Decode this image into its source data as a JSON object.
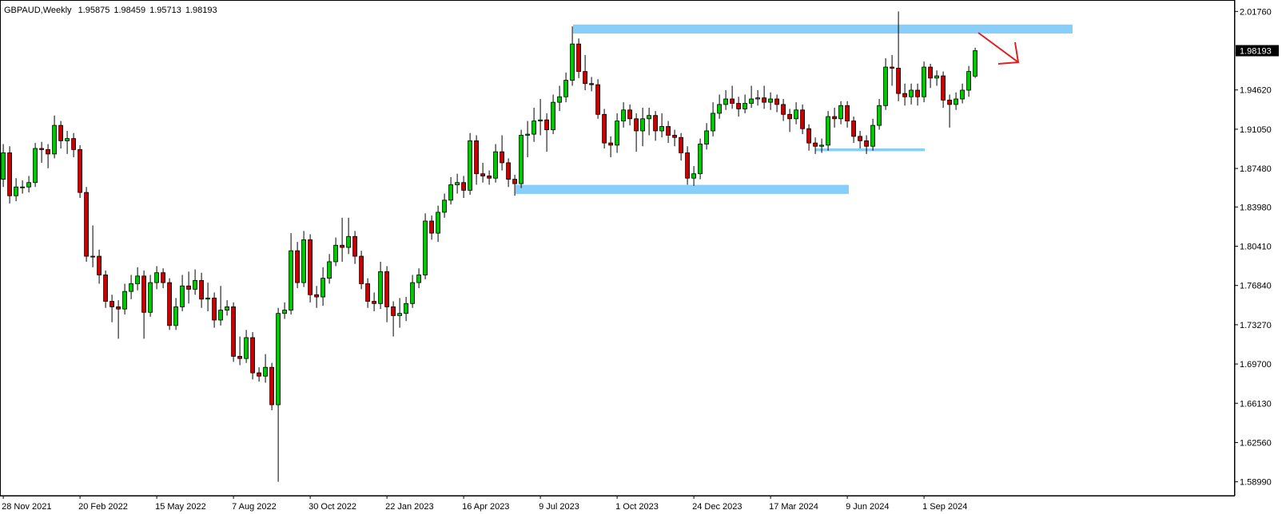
{
  "chart_data": {
    "type": "candlestick",
    "title": "GBPAUD,Weekly",
    "bull_color": "#00c800",
    "bear_color": "#c80000",
    "zone_color": "#87cefa",
    "categories": [
      "28 Nov 2021",
      null,
      null,
      null,
      null,
      null,
      null,
      null,
      null,
      null,
      null,
      null,
      "20 Feb 2022",
      null,
      null,
      null,
      null,
      null,
      null,
      null,
      null,
      null,
      null,
      null,
      "15 May 2022",
      null,
      null,
      null,
      null,
      null,
      null,
      null,
      null,
      null,
      null,
      null,
      "7 Aug 2022",
      null,
      null,
      null,
      null,
      null,
      null,
      null,
      null,
      null,
      null,
      null,
      "30 Oct 2022",
      null,
      null,
      null,
      null,
      null,
      null,
      null,
      null,
      null,
      null,
      null,
      "22 Jan 2023",
      null,
      null,
      null,
      null,
      null,
      null,
      null,
      null,
      null,
      null,
      null,
      "16 Apr 2023",
      null,
      null,
      null,
      null,
      null,
      null,
      null,
      null,
      null,
      null,
      null,
      "9 Jul 2023",
      null,
      null,
      null,
      null,
      null,
      null,
      null,
      null,
      null,
      null,
      null,
      "1 Oct 2023",
      null,
      null,
      null,
      null,
      null,
      null,
      null,
      null,
      null,
      null,
      null,
      "24 Dec 2023",
      null,
      null,
      null,
      null,
      null,
      null,
      null,
      null,
      null,
      null,
      null,
      "17 Mar 2024",
      null,
      null,
      null,
      null,
      null,
      null,
      null,
      null,
      null,
      null,
      null,
      "9 Jun 2024",
      null,
      null,
      null,
      null,
      null,
      null,
      null,
      null,
      null,
      null,
      null,
      "1 Sep 2024",
      null,
      null,
      null,
      null,
      null,
      null,
      null,
      null
    ],
    "open": [
      1.865,
      1.889,
      1.85,
      1.858,
      1.858,
      1.862,
      1.893,
      1.892,
      1.888,
      1.914,
      1.9,
      1.902,
      1.892,
      1.853,
      1.795,
      1.795,
      1.778,
      1.754,
      1.749,
      1.747,
      1.763,
      1.77,
      1.777,
      1.744,
      1.771,
      1.78,
      1.771,
      1.732,
      1.749,
      1.768,
      1.765,
      1.773,
      1.756,
      1.757,
      1.737,
      1.746,
      1.749,
      1.704,
      1.702,
      1.721,
      1.689,
      1.686,
      1.694,
      1.66,
      1.743,
      1.746,
      1.8,
      1.771,
      1.81,
      1.76,
      1.758,
      1.775,
      1.79,
      1.805,
      1.803,
      1.813,
      1.795,
      1.77,
      1.754,
      1.752,
      1.781,
      1.749,
      1.741,
      1.743,
      1.752,
      1.771,
      1.778,
      1.827,
      1.816,
      1.835,
      1.846,
      1.86,
      1.862,
      1.855,
      1.9,
      1.87,
      1.868,
      1.866,
      1.89,
      1.88,
      1.865,
      1.861,
      1.905,
      1.906,
      1.918,
      1.919,
      1.91,
      1.935,
      1.94,
      1.955,
      1.988,
      1.963,
      1.952,
      1.951,
      1.924,
      1.898,
      1.896,
      1.918,
      1.928,
      1.92,
      1.909,
      1.92,
      1.923,
      1.909,
      1.913,
      1.905,
      1.903,
      1.889,
      1.866,
      1.87,
      1.897,
      1.909,
      1.925,
      1.933,
      1.938,
      1.934,
      1.929,
      1.934,
      1.938,
      1.939,
      1.935,
      1.938,
      1.933,
      1.924,
      1.92,
      1.928,
      1.911,
      1.898,
      1.895,
      1.896,
      1.922,
      1.92,
      1.932,
      1.918,
      1.904,
      1.9,
      1.895,
      1.914,
      1.932,
      1.967,
      1.966,
      1.943,
      1.94,
      1.946,
      1.94,
      1.967,
      1.957,
      1.959,
      1.937,
      1.933,
      1.938,
      1.946,
      1.95875
    ],
    "high": [
      1.897,
      1.895,
      1.866,
      1.864,
      1.868,
      1.898,
      1.899,
      1.897,
      1.923,
      1.918,
      1.909,
      1.907,
      1.896,
      1.858,
      1.823,
      1.801,
      1.782,
      1.76,
      1.755,
      1.77,
      1.778,
      1.785,
      1.782,
      1.778,
      1.786,
      1.784,
      1.775,
      1.757,
      1.778,
      1.781,
      1.783,
      1.78,
      1.771,
      1.762,
      1.768,
      1.755,
      1.753,
      1.722,
      1.728,
      1.726,
      1.694,
      1.706,
      1.698,
      1.748,
      1.753,
      1.816,
      1.808,
      1.818,
      1.815,
      1.768,
      1.785,
      1.797,
      1.812,
      1.83,
      1.83,
      1.818,
      1.8,
      1.775,
      1.762,
      1.79,
      1.786,
      1.754,
      1.757,
      1.758,
      1.778,
      1.784,
      1.834,
      1.832,
      1.841,
      1.852,
      1.867,
      1.87,
      1.868,
      1.907,
      1.905,
      1.88,
      1.873,
      1.897,
      1.905,
      1.884,
      1.869,
      1.91,
      1.918,
      1.93,
      1.938,
      1.925,
      1.942,
      1.95,
      1.962,
      2.004,
      1.993,
      1.978,
      1.958,
      1.956,
      1.929,
      1.904,
      1.925,
      1.935,
      1.933,
      1.925,
      1.93,
      1.93,
      1.927,
      1.925,
      1.918,
      1.91,
      1.907,
      1.895,
      1.877,
      1.902,
      1.916,
      1.935,
      1.942,
      1.946,
      1.95,
      1.94,
      1.942,
      1.95,
      1.946,
      1.95,
      1.944,
      1.942,
      1.938,
      1.929,
      1.935,
      1.933,
      1.915,
      1.903,
      1.902,
      1.927,
      1.93,
      1.936,
      1.936,
      1.922,
      1.909,
      1.905,
      1.92,
      1.938,
      1.975,
      1.978,
      2.0176,
      1.952,
      1.952,
      1.952,
      1.972,
      1.97,
      1.964,
      1.963,
      1.942,
      1.944,
      1.952,
      1.968,
      1.98459
    ],
    "low": [
      1.858,
      1.843,
      1.845,
      1.852,
      1.853,
      1.858,
      1.88,
      1.875,
      1.884,
      1.893,
      1.888,
      1.885,
      1.848,
      1.79,
      1.785,
      1.77,
      1.748,
      1.735,
      1.72,
      1.742,
      1.756,
      1.764,
      1.72,
      1.74,
      1.765,
      1.766,
      1.728,
      1.728,
      1.745,
      1.752,
      1.76,
      1.748,
      1.745,
      1.73,
      1.732,
      1.741,
      1.699,
      1.696,
      1.698,
      1.683,
      1.681,
      1.68,
      1.655,
      1.5899,
      1.738,
      1.742,
      1.766,
      1.767,
      1.753,
      1.748,
      1.75,
      1.77,
      1.786,
      1.79,
      1.797,
      1.788,
      1.765,
      1.748,
      1.745,
      1.747,
      1.735,
      1.722,
      1.73,
      1.736,
      1.748,
      1.766,
      1.774,
      1.81,
      1.808,
      1.83,
      1.842,
      1.852,
      1.848,
      1.851,
      1.86,
      1.862,
      1.86,
      1.862,
      1.873,
      1.858,
      1.85,
      1.857,
      1.885,
      1.899,
      1.905,
      1.89,
      1.906,
      1.927,
      1.935,
      1.95,
      1.957,
      1.946,
      1.945,
      1.92,
      1.893,
      1.885,
      1.889,
      1.912,
      1.914,
      1.89,
      1.895,
      1.905,
      1.9,
      1.903,
      1.898,
      1.895,
      1.882,
      1.86,
      1.859,
      1.865,
      1.892,
      1.904,
      1.92,
      1.928,
      1.929,
      1.922,
      1.925,
      1.93,
      1.932,
      1.929,
      1.928,
      1.926,
      1.918,
      1.908,
      1.915,
      1.906,
      1.891,
      1.888,
      1.889,
      1.891,
      1.912,
      1.915,
      1.912,
      1.898,
      1.893,
      1.888,
      1.891,
      1.91,
      1.928,
      1.95,
      1.936,
      1.932,
      1.933,
      1.932,
      1.935,
      1.948,
      1.95,
      1.93,
      1.912,
      1.928,
      1.934,
      1.94,
      1.95713
    ],
    "close": [
      1.889,
      1.85,
      1.858,
      1.858,
      1.862,
      1.893,
      1.892,
      1.888,
      1.914,
      1.9,
      1.902,
      1.892,
      1.853,
      1.795,
      1.795,
      1.778,
      1.754,
      1.749,
      1.747,
      1.763,
      1.77,
      1.777,
      1.744,
      1.771,
      1.78,
      1.771,
      1.732,
      1.749,
      1.768,
      1.765,
      1.773,
      1.756,
      1.757,
      1.737,
      1.746,
      1.749,
      1.704,
      1.702,
      1.721,
      1.689,
      1.686,
      1.694,
      1.66,
      1.743,
      1.746,
      1.8,
      1.771,
      1.81,
      1.76,
      1.758,
      1.775,
      1.79,
      1.805,
      1.803,
      1.813,
      1.795,
      1.77,
      1.754,
      1.752,
      1.781,
      1.749,
      1.741,
      1.743,
      1.752,
      1.771,
      1.778,
      1.827,
      1.816,
      1.835,
      1.846,
      1.86,
      1.862,
      1.855,
      1.9,
      1.87,
      1.868,
      1.866,
      1.89,
      1.88,
      1.865,
      1.861,
      1.905,
      1.906,
      1.918,
      1.919,
      1.91,
      1.935,
      1.94,
      1.955,
      1.988,
      1.963,
      1.952,
      1.951,
      1.924,
      1.898,
      1.896,
      1.918,
      1.928,
      1.92,
      1.909,
      1.92,
      1.923,
      1.909,
      1.913,
      1.905,
      1.903,
      1.889,
      1.866,
      1.87,
      1.897,
      1.909,
      1.925,
      1.933,
      1.938,
      1.934,
      1.929,
      1.934,
      1.938,
      1.939,
      1.935,
      1.938,
      1.933,
      1.924,
      1.92,
      1.928,
      1.911,
      1.898,
      1.895,
      1.896,
      1.922,
      1.92,
      1.932,
      1.918,
      1.904,
      1.9,
      1.895,
      1.914,
      1.932,
      1.967,
      1.966,
      1.943,
      1.94,
      1.946,
      1.94,
      1.967,
      1.957,
      1.959,
      1.937,
      1.933,
      1.938,
      1.946,
      1.963,
      1.98193
    ],
    "current_price": 1.98193,
    "ylim": [
      1.5773,
      2.028
    ],
    "yticks": [
      {
        "value": 1.5899,
        "label": "1.58990"
      },
      {
        "value": 1.6256,
        "label": "1.62560"
      },
      {
        "value": 1.6613,
        "label": "1.66130"
      },
      {
        "value": 1.697,
        "label": "1.69700"
      },
      {
        "value": 1.7327,
        "label": "1.73270"
      },
      {
        "value": 1.7684,
        "label": "1.76840"
      },
      {
        "value": 1.8041,
        "label": "1.80410"
      },
      {
        "value": 1.8398,
        "label": "1.83980"
      },
      {
        "value": 1.8748,
        "label": "1.87480"
      },
      {
        "value": 1.9105,
        "label": "1.91050"
      },
      {
        "value": 1.9462,
        "label": "1.94620"
      },
      {
        "value": 2.0176,
        "label": "2.01760"
      }
    ],
    "grid": false,
    "zones": [
      {
        "top": 2.0057,
        "bottom": 1.9975
      },
      {
        "top": 1.8599,
        "bottom": 1.8517
      },
      {
        "top": 1.893,
        "bottom": 1.8905
      }
    ]
  }
}
